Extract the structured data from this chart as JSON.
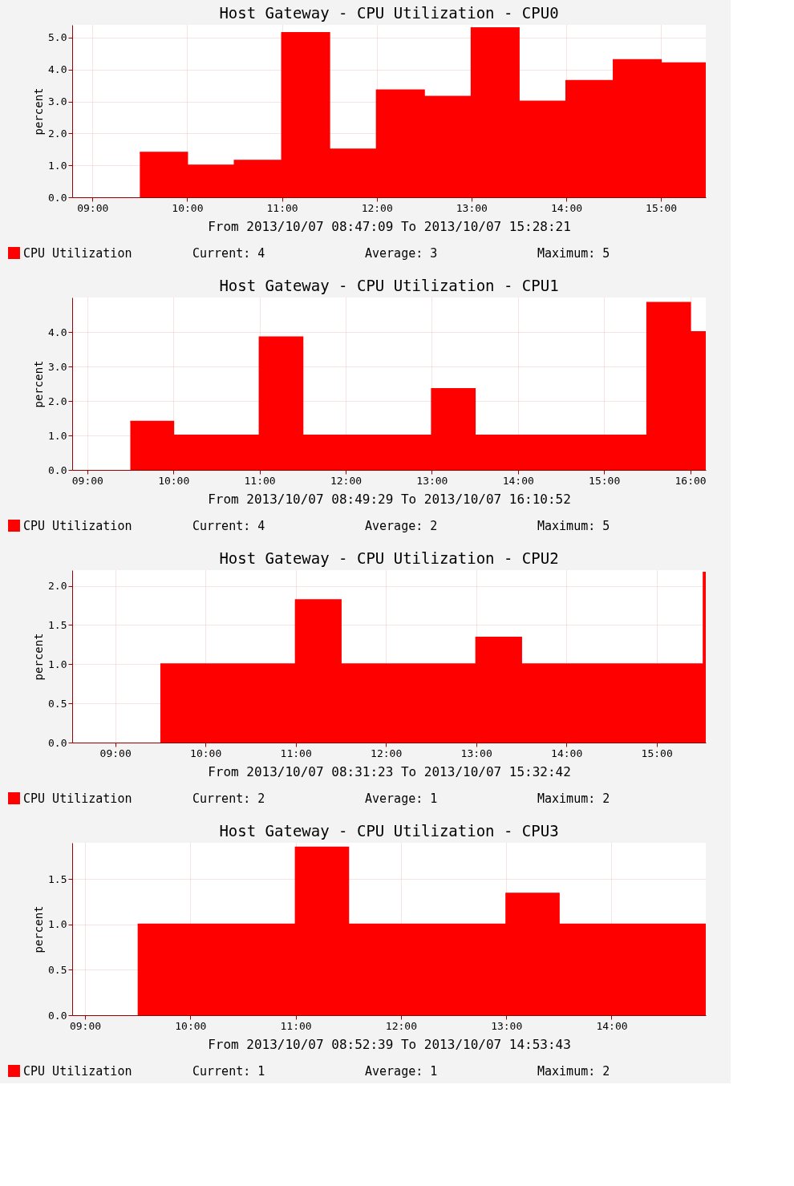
{
  "chart_data": [
    {
      "type": "area",
      "title": "Host Gateway - CPU Utilization - CPU0",
      "xlabel": "From 2013/10/07 08:47:09 To 2013/10/07 15:28:21",
      "ylabel": "percent",
      "xlim": [
        8.786,
        15.473
      ],
      "xticks": [
        {
          "value": 9,
          "label": "09:00"
        },
        {
          "value": 10,
          "label": "10:00"
        },
        {
          "value": 11,
          "label": "11:00"
        },
        {
          "value": 12,
          "label": "12:00"
        },
        {
          "value": 13,
          "label": "13:00"
        },
        {
          "value": 14,
          "label": "14:00"
        },
        {
          "value": 15,
          "label": "15:00"
        }
      ],
      "ylim": [
        0,
        5.4
      ],
      "yticks": [
        {
          "value": 0,
          "label": "0.0"
        },
        {
          "value": 1,
          "label": "1.0"
        },
        {
          "value": 2,
          "label": "2.0"
        },
        {
          "value": 3,
          "label": "3.0"
        },
        {
          "value": 4,
          "label": "4.0"
        },
        {
          "value": 5,
          "label": "5.0"
        }
      ],
      "grid": true,
      "legend": "bottom left",
      "series": [
        {
          "name": "CPU Utilization",
          "color": "#ff0000",
          "x": [
            9.5,
            10,
            10,
            10.5,
            10.5,
            11,
            11,
            11.5,
            11.5,
            12,
            12,
            12.5,
            12.5,
            13,
            13,
            13.5,
            13.5,
            14,
            14,
            14.5,
            14.5,
            15,
            15,
            15.473
          ],
          "values": [
            1.4,
            1.4,
            1.0,
            1.0,
            1.15,
            1.15,
            5.15,
            5.15,
            1.5,
            1.5,
            3.35,
            3.35,
            3.15,
            3.15,
            5.3,
            5.3,
            3.0,
            3.0,
            3.65,
            3.65,
            4.3,
            4.3,
            4.2,
            4.2
          ]
        }
      ],
      "annotations": [
        "Current: 4",
        "Average: 3",
        "Maximum: 5"
      ]
    },
    {
      "type": "area",
      "title": "Host Gateway - CPU Utilization - CPU1",
      "xlabel": "From 2013/10/07 08:49:29 To 2013/10/07 16:10:52",
      "ylabel": "percent",
      "xlim": [
        8.825,
        16.181
      ],
      "xticks": [
        {
          "value": 9,
          "label": "09:00"
        },
        {
          "value": 10,
          "label": "10:00"
        },
        {
          "value": 11,
          "label": "11:00"
        },
        {
          "value": 12,
          "label": "12:00"
        },
        {
          "value": 13,
          "label": "13:00"
        },
        {
          "value": 14,
          "label": "14:00"
        },
        {
          "value": 15,
          "label": "15:00"
        },
        {
          "value": 16,
          "label": "16:00"
        }
      ],
      "ylim": [
        0,
        5.0
      ],
      "yticks": [
        {
          "value": 0,
          "label": "0.0"
        },
        {
          "value": 1,
          "label": "1.0"
        },
        {
          "value": 2,
          "label": "2.0"
        },
        {
          "value": 3,
          "label": "3.0"
        },
        {
          "value": 4,
          "label": "4.0"
        }
      ],
      "grid": true,
      "legend": "bottom left",
      "series": [
        {
          "name": "CPU Utilization",
          "color": "#ff0000",
          "x": [
            9.5,
            10,
            10,
            11,
            11,
            11.5,
            11.5,
            13,
            13,
            13.5,
            13.5,
            15.5,
            15.5,
            16,
            16,
            16.181
          ],
          "values": [
            1.4,
            1.4,
            1.0,
            1.0,
            3.85,
            3.85,
            1.0,
            1.0,
            2.35,
            2.35,
            1.0,
            1.0,
            4.85,
            4.85,
            4.0,
            4.0
          ]
        }
      ],
      "annotations": [
        "Current: 4",
        "Average: 2",
        "Maximum: 5"
      ]
    },
    {
      "type": "area",
      "title": "Host Gateway - CPU Utilization - CPU2",
      "xlabel": "From 2013/10/07 08:31:23 To 2013/10/07 15:32:42",
      "ylabel": "percent",
      "xlim": [
        8.523,
        15.545
      ],
      "xticks": [
        {
          "value": 9,
          "label": "09:00"
        },
        {
          "value": 10,
          "label": "10:00"
        },
        {
          "value": 11,
          "label": "11:00"
        },
        {
          "value": 12,
          "label": "12:00"
        },
        {
          "value": 13,
          "label": "13:00"
        },
        {
          "value": 14,
          "label": "14:00"
        },
        {
          "value": 15,
          "label": "15:00"
        }
      ],
      "ylim": [
        0,
        2.2
      ],
      "yticks": [
        {
          "value": 0,
          "label": "0.0"
        },
        {
          "value": 0.5,
          "label": "0.5"
        },
        {
          "value": 1,
          "label": "1.0"
        },
        {
          "value": 1.5,
          "label": "1.5"
        },
        {
          "value": 2,
          "label": "2.0"
        }
      ],
      "grid": true,
      "legend": "bottom left",
      "series": [
        {
          "name": "CPU Utilization",
          "color": "#ff0000",
          "x": [
            9.5,
            11,
            11,
            11.5,
            11.5,
            13,
            13,
            13.5,
            13.5,
            15.52,
            15.52,
            15.545
          ],
          "values": [
            1.0,
            1.0,
            1.82,
            1.82,
            1.0,
            1.0,
            1.34,
            1.34,
            1.0,
            1.0,
            2.17,
            2.17
          ]
        }
      ],
      "annotations": [
        "Current: 2",
        "Average: 1",
        "Maximum: 2"
      ]
    },
    {
      "type": "area",
      "title": "Host Gateway - CPU Utilization - CPU3",
      "xlabel": "From 2013/10/07 08:52:39 To 2013/10/07 14:53:43",
      "ylabel": "percent",
      "xlim": [
        8.878,
        14.895
      ],
      "xticks": [
        {
          "value": 9,
          "label": "09:00"
        },
        {
          "value": 10,
          "label": "10:00"
        },
        {
          "value": 11,
          "label": "11:00"
        },
        {
          "value": 12,
          "label": "12:00"
        },
        {
          "value": 13,
          "label": "13:00"
        },
        {
          "value": 14,
          "label": "14:00"
        }
      ],
      "ylim": [
        0,
        1.9
      ],
      "yticks": [
        {
          "value": 0,
          "label": "0.0"
        },
        {
          "value": 0.5,
          "label": "0.5"
        },
        {
          "value": 1,
          "label": "1.0"
        },
        {
          "value": 1.5,
          "label": "1.5"
        }
      ],
      "grid": true,
      "legend": "bottom left",
      "series": [
        {
          "name": "CPU Utilization",
          "color": "#ff0000",
          "x": [
            9.5,
            11,
            11,
            11.5,
            11.5,
            13,
            13,
            13.5,
            13.5,
            14.895
          ],
          "values": [
            1.0,
            1.0,
            1.85,
            1.85,
            1.0,
            1.0,
            1.34,
            1.34,
            1.0,
            1.0
          ]
        }
      ],
      "annotations": [
        "Current: 1",
        "Average: 1",
        "Maximum: 2"
      ]
    }
  ]
}
